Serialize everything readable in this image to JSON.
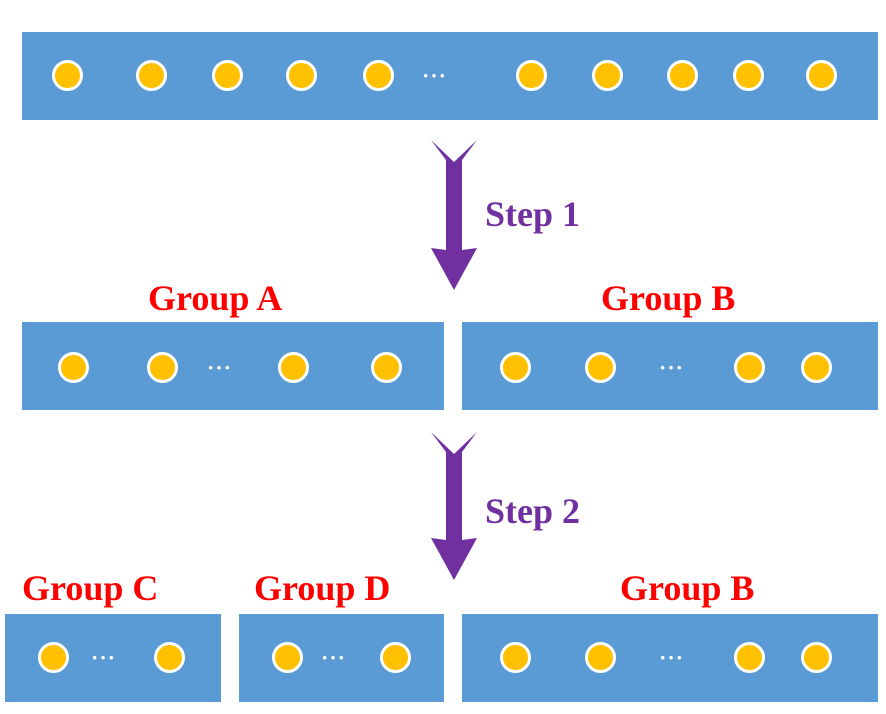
{
  "steps": {
    "step1": "Step 1",
    "step2": "Step 2"
  },
  "groups": {
    "a": "Group A",
    "b_top": "Group B",
    "c": "Group C",
    "d": "Group D",
    "b_bottom": "Group B"
  },
  "ellipsis": "···",
  "colors": {
    "bar": "#5b9bd5",
    "node": "#ffc000",
    "node_border": "#ffffff",
    "group_label": "#ff0000",
    "arrow": "#7030a0"
  }
}
